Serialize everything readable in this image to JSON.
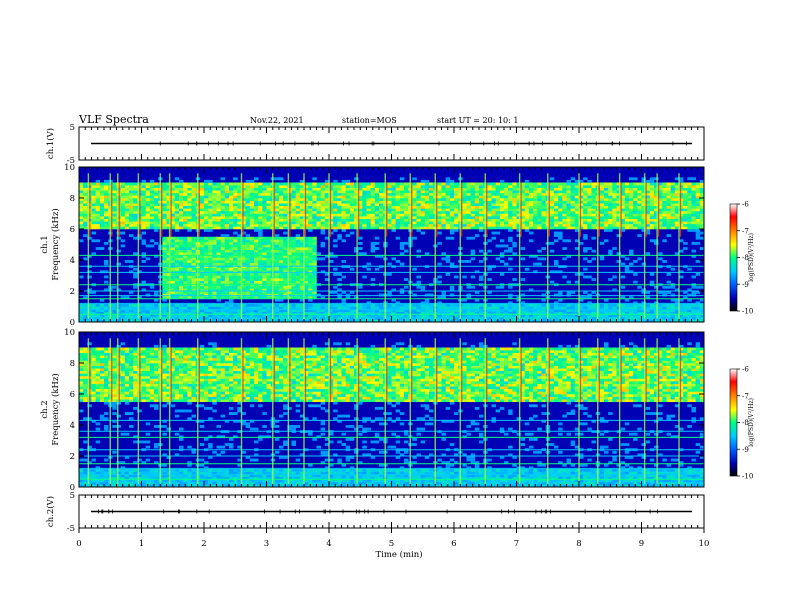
{
  "header": {
    "title": "VLF Spectra",
    "date": "Nov.22, 2021",
    "station": "station=MOS",
    "start": "start UT =  20: 10: 1"
  },
  "colors": {
    "colormap": [
      "#000000",
      "#0000b4",
      "#0060ff",
      "#00c8ff",
      "#00ff80",
      "#ffff00",
      "#ff8000",
      "#ff0000",
      "#ffffff"
    ]
  },
  "chart_data": [
    {
      "type": "line",
      "panel": "ch1-waveform",
      "ylabel": "ch.1(V)",
      "ylim": [
        -5,
        5
      ],
      "yticks": [
        "5",
        "-5"
      ],
      "xlim": [
        0,
        10
      ],
      "series_level": 0
    },
    {
      "type": "heatmap",
      "panel": "ch1-spectrogram",
      "ylabel": "ch.1\nFrequency (kHz)",
      "ylim": [
        0,
        10
      ],
      "yticks": [
        "0",
        "2",
        "4",
        "6",
        "8",
        "10"
      ],
      "xlim": [
        0,
        10
      ],
      "colorbar": {
        "label": "log(PSD)(V²/Hz)",
        "range": [
          -10,
          -6
        ],
        "ticks": [
          "-6",
          "-7",
          "-8",
          "-9",
          "-10"
        ]
      },
      "hiss_band_khz": [
        6,
        9
      ],
      "noise_lines_khz": [
        0.5,
        0.8,
        1.2,
        1.5,
        1.7,
        2.0,
        2.4,
        3.2,
        3.6,
        4.3
      ],
      "spheric_times_min": [
        0.15,
        0.5,
        0.62,
        0.95,
        1.3,
        1.45,
        1.9,
        2.6,
        3.1,
        3.35,
        3.6,
        4.0,
        4.45,
        4.9,
        5.3,
        5.7,
        6.1,
        6.5,
        7.05,
        7.5,
        8.0,
        8.3,
        8.65,
        9.05,
        9.25,
        9.6
      ]
    },
    {
      "type": "heatmap",
      "panel": "ch2-spectrogram",
      "ylabel": "ch.2\nFrequency (kHz)",
      "ylim": [
        0,
        10
      ],
      "yticks": [
        "0",
        "2",
        "4",
        "6",
        "8",
        "10"
      ],
      "xlim": [
        0,
        10
      ],
      "colorbar": {
        "label": "log(PSD)(V²/Hz)",
        "range": [
          -10,
          -6
        ],
        "ticks": [
          "-6",
          "-7",
          "-8",
          "-9",
          "-10"
        ]
      },
      "hiss_band_khz": [
        5.5,
        9
      ],
      "noise_lines_khz": [
        0.5,
        0.8,
        1.2,
        1.5,
        2.0,
        2.4,
        3.2,
        3.6,
        4.3
      ],
      "spheric_times_min": [
        0.15,
        0.5,
        0.62,
        0.95,
        1.3,
        1.45,
        1.9,
        2.6,
        3.1,
        3.35,
        3.6,
        4.0,
        4.45,
        4.9,
        5.3,
        5.7,
        6.1,
        6.5,
        7.05,
        7.5,
        8.0,
        8.3,
        8.65,
        9.05,
        9.25,
        9.6
      ]
    },
    {
      "type": "line",
      "panel": "ch2-waveform",
      "ylabel": "ch.2(V)",
      "ylim": [
        -5,
        5
      ],
      "yticks": [
        "5",
        "-5"
      ],
      "xlim": [
        0,
        10
      ],
      "series_level": 0
    }
  ],
  "xaxis": {
    "label": "Time (min)",
    "ticks": [
      "0",
      "1",
      "2",
      "3",
      "4",
      "5",
      "6",
      "7",
      "8",
      "9",
      "10"
    ]
  }
}
